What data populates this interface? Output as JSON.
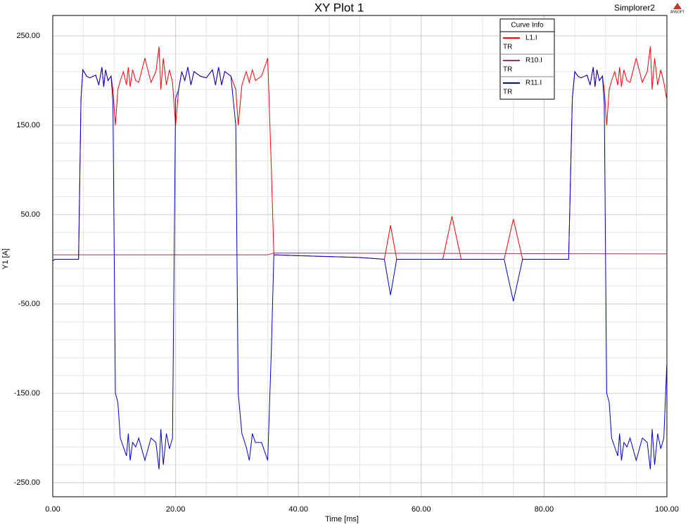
{
  "chart_data": {
    "type": "line",
    "title": "XY Plot 1",
    "product": "Simplorer2",
    "logo_text": "ANSOFT",
    "legend_title": "Curve Info",
    "xlabel": "Time [ms]",
    "ylabel": "Y1 [A]",
    "xlim": [
      0,
      100
    ],
    "ylim": [
      -265.7,
      272.8
    ],
    "grid": true,
    "xticks": [
      {
        "value": 0,
        "label": "0.00"
      },
      {
        "value": 20,
        "label": "20.00"
      },
      {
        "value": 40,
        "label": "40.00"
      },
      {
        "value": 60,
        "label": "60.00"
      },
      {
        "value": 80,
        "label": "80.00"
      },
      {
        "value": 100,
        "label": "100.00"
      }
    ],
    "yticks": [
      {
        "value": -250,
        "label": "-250.00"
      },
      {
        "value": -150,
        "label": "-150.00"
      },
      {
        "value": -50,
        "label": "-50.00"
      },
      {
        "value": 50,
        "label": "50.00"
      },
      {
        "value": 150,
        "label": "150.00"
      },
      {
        "value": 250,
        "label": "250.00"
      }
    ],
    "x": [
      0,
      0.3,
      4.2,
      4.6,
      4.9,
      5.5,
      6,
      7,
      7.5,
      8,
      8.3,
      8.6,
      9,
      9.5,
      9.8,
      10.2,
      10.6,
      11,
      11.5,
      12,
      12.3,
      12.6,
      13,
      13.5,
      14,
      15,
      16,
      16.8,
      17.3,
      17.6,
      18,
      18.5,
      19,
      19.5,
      20,
      20.5,
      21,
      21.5,
      22,
      22.5,
      23,
      24,
      25,
      26,
      26.5,
      27,
      27.5,
      28,
      29,
      29.8,
      30.2,
      30.8,
      31.5,
      32,
      32.5,
      33,
      34,
      35,
      35.6,
      36,
      40,
      50,
      54,
      55,
      56,
      63.5,
      65,
      66.5,
      73.5,
      75,
      76.5,
      84,
      84.6,
      85,
      85.5,
      86,
      87,
      87.5,
      88,
      88.3,
      88.6,
      89,
      89.5,
      89.8,
      90.2,
      90.6,
      91,
      91.5,
      92,
      92.3,
      92.6,
      93,
      93.5,
      94,
      95,
      96,
      96.8,
      97.3,
      97.6,
      98,
      98.5,
      99,
      99.5,
      100
    ],
    "series": [
      {
        "name": "L1.I",
        "legend_sub": "TR",
        "color": "#ff0000",
        "values": [
          -2,
          0,
          0,
          180,
          212,
          205,
          203,
          206,
          195,
          215,
          193,
          212,
          200,
          205,
          190,
          150,
          190,
          200,
          210,
          195,
          215,
          193,
          212,
          200,
          198,
          225,
          198,
          210,
          238,
          190,
          225,
          195,
          212,
          198,
          150,
          190,
          210,
          200,
          215,
          195,
          210,
          205,
          203,
          212,
          195,
          215,
          195,
          210,
          205,
          190,
          150,
          195,
          210,
          198,
          212,
          200,
          205,
          225,
          100,
          5,
          4,
          2,
          0,
          38,
          0,
          0,
          48,
          0,
          0,
          45,
          0,
          0,
          180,
          210,
          205,
          203,
          206,
          195,
          215,
          193,
          212,
          200,
          205,
          190,
          150,
          190,
          200,
          210,
          195,
          215,
          193,
          212,
          200,
          198,
          225,
          198,
          210,
          238,
          190,
          225,
          195,
          212,
          198,
          178
        ]
      },
      {
        "name": "R10.I",
        "legend_sub": "TR",
        "color": "#993366",
        "x": [
          0,
          35,
          36,
          100
        ],
        "values": [
          5,
          5,
          7,
          6
        ]
      },
      {
        "name": "R11.I",
        "legend_sub": "TR",
        "color": "#0000cc",
        "values": [
          -2,
          0,
          0,
          180,
          212,
          205,
          203,
          206,
          195,
          215,
          193,
          212,
          200,
          205,
          175,
          -150,
          -160,
          -200,
          -210,
          -220,
          -195,
          -225,
          -205,
          -210,
          -200,
          -225,
          -200,
          -205,
          -235,
          -190,
          -230,
          -195,
          -212,
          -200,
          180,
          190,
          210,
          200,
          215,
          195,
          210,
          205,
          203,
          212,
          195,
          215,
          195,
          210,
          205,
          150,
          -150,
          -195,
          -210,
          -225,
          -195,
          -205,
          -205,
          -225,
          -100,
          5,
          4,
          2,
          0,
          -40,
          0,
          0,
          0,
          0,
          0,
          -47,
          0,
          0,
          180,
          210,
          205,
          203,
          206,
          195,
          215,
          193,
          212,
          200,
          205,
          175,
          -150,
          -160,
          -200,
          -210,
          -220,
          -195,
          -225,
          -205,
          -210,
          -200,
          -225,
          -200,
          -205,
          -235,
          -190,
          -230,
          -195,
          -212,
          -200,
          -115
        ]
      }
    ]
  }
}
